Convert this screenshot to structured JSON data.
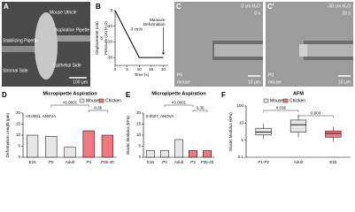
{
  "panels": {
    "a": {
      "label": "A",
      "texts": [
        "Mouse Utricle",
        "Aspiration Pipette",
        "Stabilizing Pipette",
        "Stromal Side",
        "Epithelial Side"
      ],
      "scale_bar": "100 µm"
    },
    "c": {
      "label": "C",
      "pressure": "0 cm H₂O",
      "time": "0 s",
      "scale_bar": "10 µm",
      "stage": "P0",
      "species": "mouse"
    },
    "c2": {
      "label": "C'",
      "pressure": "-30 cm H₂O",
      "time": "20 s",
      "scale_bar": "10 µm",
      "stage": "P0",
      "species": "mouse"
    }
  },
  "chart_data": [
    {
      "label": "B",
      "type": "line",
      "xlabel": "Time (s)",
      "ylabel": [
        "Displacement (cm)",
        "or",
        "Pressure (cm H₂O)"
      ],
      "x": [
        0,
        10,
        20
      ],
      "values": [
        0,
        -30,
        -30
      ],
      "color": "#000000",
      "xlim": [
        0,
        22
      ],
      "xticks": [
        0,
        5,
        10,
        15,
        20
      ],
      "ylim": [
        -35,
        0
      ],
      "yticks": [
        -30,
        -20,
        -10,
        0
      ],
      "rate_label": "-3 cm/s",
      "measure_label": [
        "Measure",
        "Deformation"
      ]
    },
    {
      "label": "D",
      "type": "bar",
      "title": "Micropipette Aspiration",
      "ylabel": "Deformation Length (µm)",
      "categories": [
        "E16",
        "P0",
        "Adult",
        "P3",
        "P36-40"
      ],
      "series": [
        {
          "name": "Mouse",
          "color": "#e6e6e6",
          "values": [
            10,
            9.5,
            4.5,
            null,
            null
          ]
        },
        {
          "name": "Chicken",
          "color": "#f4777f",
          "values": [
            null,
            null,
            null,
            12,
            10
          ]
        }
      ],
      "ylim": [
        0,
        20
      ],
      "yticks": [
        0,
        5,
        10,
        15,
        20
      ],
      "legend": true,
      "annotations": [
        "<0.0001, ANOVA",
        "<0.0001",
        "0.36"
      ]
    },
    {
      "label": "E",
      "type": "bar",
      "title": "Micropipette Aspiration",
      "ylabel": "Elastic Modulus (kPa)",
      "categories": [
        "E16",
        "P0",
        "Adult",
        "P3",
        "P36-40"
      ],
      "series": [
        {
          "name": "Mouse",
          "color": "#e6e6e6",
          "values": [
            3,
            3,
            8,
            null,
            null
          ]
        },
        {
          "name": "Chicken",
          "color": "#f4777f",
          "values": [
            null,
            null,
            null,
            3,
            3
          ]
        }
      ],
      "ylim": [
        0,
        20
      ],
      "yticks": [
        0,
        5,
        10,
        15,
        20
      ],
      "legend": false,
      "annotations": [
        "0.0027, ANOVA",
        "<0.0001",
        "0.30"
      ]
    },
    {
      "label": "F",
      "type": "box",
      "title": "AFM",
      "ylabel": "Elastic Modulus (kPa)",
      "categories": [
        "P1-P2",
        "Adult",
        "E15"
      ],
      "series": [
        {
          "name": "Mouse",
          "color": "#e6e6e6",
          "boxes": [
            {
              "min": 1.2,
              "q1": 2,
              "median": 3,
              "q3": 5,
              "max": 9
            },
            {
              "min": 1.5,
              "q1": 3,
              "median": 8,
              "q3": 15,
              "max": 30
            },
            null
          ]
        },
        {
          "name": "Chicken",
          "color": "#f4777f",
          "boxes": [
            null,
            null,
            {
              "min": 0.8,
              "q1": 1.5,
              "median": 2.5,
              "q3": 3.5,
              "max": 6
            }
          ]
        }
      ],
      "log_scale": true,
      "ylim": [
        0.1,
        100
      ],
      "yticks": [
        0.1,
        1,
        10,
        100
      ],
      "legend": true,
      "annotations": [
        "0.036",
        "0.003"
      ]
    }
  ]
}
